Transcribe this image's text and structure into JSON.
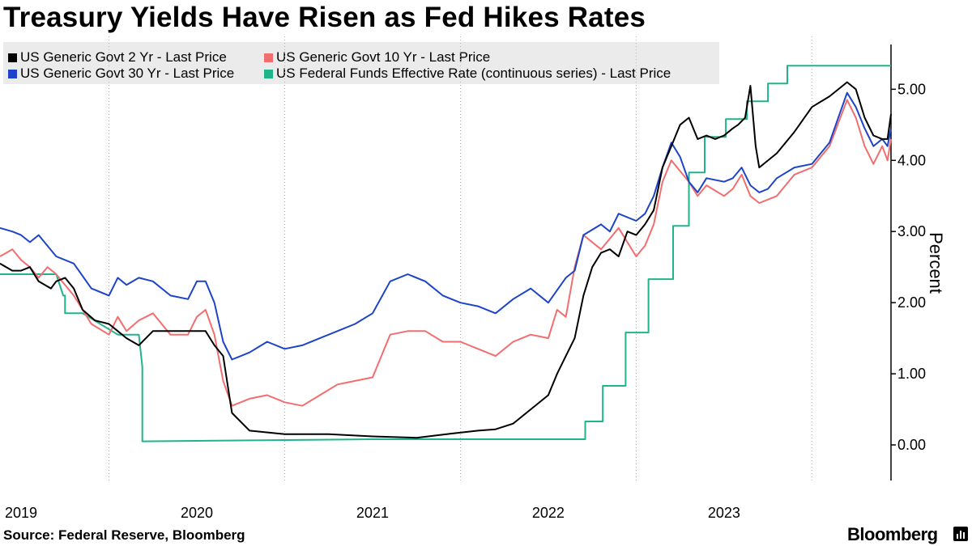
{
  "title": "Treasury Yields Have Risen as Fed Hikes Rates",
  "source": "Source: Federal Reserve, Bloomberg",
  "brand": "Bloomberg",
  "chart_data": {
    "type": "line",
    "ylabel": "Percent",
    "ylim": [
      -0.5,
      5.8
    ],
    "yticks": [
      0,
      1,
      2,
      3,
      4,
      5
    ],
    "ytick_labels": [
      "0.00",
      "1.00",
      "2.00",
      "3.00",
      "4.00",
      "5.00"
    ],
    "xlim": [
      2018.88,
      2023.95
    ],
    "xticks": [
      2019,
      2020,
      2021,
      2022,
      2023
    ],
    "xtick_labels": [
      "2019",
      "2020",
      "2021",
      "2022",
      "2023"
    ],
    "grid": "vertical dotted",
    "legend_position": "top-left",
    "series": [
      {
        "name": "US Generic Govt 2 Yr - Last Price",
        "color": "#000000",
        "x": [
          2018.88,
          2018.95,
          2019.0,
          2019.05,
          2019.1,
          2019.17,
          2019.2,
          2019.25,
          2019.3,
          2019.35,
          2019.42,
          2019.5,
          2019.55,
          2019.6,
          2019.67,
          2019.75,
          2019.85,
          2019.95,
          2020.05,
          2020.1,
          2020.15,
          2020.2,
          2020.3,
          2020.5,
          2020.75,
          2021.0,
          2021.25,
          2021.45,
          2021.6,
          2021.7,
          2021.8,
          2021.9,
          2022.0,
          2022.05,
          2022.1,
          2022.15,
          2022.2,
          2022.25,
          2022.3,
          2022.35,
          2022.4,
          2022.45,
          2022.5,
          2022.55,
          2022.6,
          2022.65,
          2022.7,
          2022.75,
          2022.8,
          2022.85,
          2022.9,
          2022.95,
          2023.0,
          2023.05,
          2023.08,
          2023.12,
          2023.15,
          2023.18,
          2023.2,
          2023.3,
          2023.4,
          2023.5,
          2023.6,
          2023.7,
          2023.75,
          2023.8,
          2023.85,
          2023.9,
          2023.93,
          2023.95
        ],
        "values": [
          2.55,
          2.45,
          2.45,
          2.5,
          2.3,
          2.2,
          2.3,
          2.35,
          2.2,
          1.9,
          1.75,
          1.7,
          1.6,
          1.5,
          1.4,
          1.6,
          1.6,
          1.6,
          1.6,
          1.4,
          1.25,
          0.45,
          0.2,
          0.15,
          0.15,
          0.12,
          0.1,
          0.16,
          0.2,
          0.22,
          0.3,
          0.5,
          0.7,
          1.0,
          1.25,
          1.5,
          2.1,
          2.5,
          2.7,
          2.75,
          2.65,
          3.0,
          2.95,
          3.1,
          3.3,
          3.9,
          4.2,
          4.5,
          4.6,
          4.3,
          4.35,
          4.3,
          4.35,
          4.45,
          4.5,
          4.6,
          5.05,
          4.2,
          3.9,
          4.1,
          4.4,
          4.75,
          4.9,
          5.1,
          5.0,
          4.6,
          4.35,
          4.3,
          4.3,
          4.65
        ]
      },
      {
        "name": "US Generic Govt 10 Yr - Last Price",
        "color": "#f26e6e",
        "x": [
          2018.88,
          2018.95,
          2019.0,
          2019.05,
          2019.1,
          2019.15,
          2019.2,
          2019.3,
          2019.4,
          2019.5,
          2019.55,
          2019.6,
          2019.67,
          2019.75,
          2019.85,
          2019.95,
          2020.0,
          2020.05,
          2020.1,
          2020.15,
          2020.2,
          2020.3,
          2020.4,
          2020.5,
          2020.6,
          2020.7,
          2020.8,
          2020.9,
          2021.0,
          2021.1,
          2021.2,
          2021.3,
          2021.4,
          2021.5,
          2021.6,
          2021.7,
          2021.8,
          2021.9,
          2022.0,
          2022.05,
          2022.1,
          2022.15,
          2022.2,
          2022.3,
          2022.35,
          2022.4,
          2022.5,
          2022.55,
          2022.6,
          2022.65,
          2022.7,
          2022.75,
          2022.8,
          2022.85,
          2022.9,
          2023.0,
          2023.05,
          2023.1,
          2023.15,
          2023.2,
          2023.25,
          2023.3,
          2023.4,
          2023.5,
          2023.6,
          2023.7,
          2023.75,
          2023.8,
          2023.85,
          2023.9,
          2023.93,
          2023.95
        ],
        "values": [
          2.65,
          2.75,
          2.6,
          2.5,
          2.35,
          2.5,
          2.4,
          2.1,
          1.7,
          1.55,
          1.8,
          1.6,
          1.75,
          1.85,
          1.55,
          1.55,
          1.8,
          1.9,
          1.55,
          0.9,
          0.55,
          0.65,
          0.7,
          0.6,
          0.55,
          0.7,
          0.85,
          0.9,
          0.95,
          1.55,
          1.6,
          1.6,
          1.45,
          1.45,
          1.35,
          1.25,
          1.45,
          1.55,
          1.5,
          1.9,
          1.8,
          2.5,
          2.95,
          2.75,
          2.9,
          3.05,
          2.65,
          2.8,
          3.1,
          3.7,
          4.0,
          3.85,
          3.7,
          3.5,
          3.65,
          3.5,
          3.6,
          3.8,
          3.5,
          3.4,
          3.45,
          3.5,
          3.8,
          3.9,
          4.2,
          4.85,
          4.6,
          4.2,
          3.95,
          4.2,
          4.0,
          4.3
        ]
      },
      {
        "name": "US Generic Govt 30 Yr - Last Price",
        "color": "#1d44c8",
        "x": [
          2018.88,
          2018.95,
          2019.0,
          2019.05,
          2019.1,
          2019.2,
          2019.3,
          2019.4,
          2019.5,
          2019.55,
          2019.6,
          2019.67,
          2019.75,
          2019.85,
          2019.95,
          2020.0,
          2020.05,
          2020.1,
          2020.15,
          2020.2,
          2020.3,
          2020.4,
          2020.5,
          2020.6,
          2020.7,
          2020.8,
          2020.9,
          2021.0,
          2021.1,
          2021.2,
          2021.3,
          2021.4,
          2021.5,
          2021.6,
          2021.7,
          2021.8,
          2021.9,
          2022.0,
          2022.1,
          2022.15,
          2022.2,
          2022.3,
          2022.35,
          2022.4,
          2022.5,
          2022.55,
          2022.6,
          2022.65,
          2022.7,
          2022.75,
          2022.8,
          2022.85,
          2022.9,
          2023.0,
          2023.05,
          2023.1,
          2023.15,
          2023.2,
          2023.25,
          2023.3,
          2023.4,
          2023.5,
          2023.6,
          2023.7,
          2023.75,
          2023.8,
          2023.85,
          2023.9,
          2023.93,
          2023.95
        ],
        "values": [
          3.05,
          3.0,
          2.95,
          2.85,
          2.95,
          2.65,
          2.55,
          2.2,
          2.1,
          2.35,
          2.25,
          2.35,
          2.3,
          2.1,
          2.05,
          2.3,
          2.3,
          2.0,
          1.45,
          1.2,
          1.3,
          1.45,
          1.35,
          1.4,
          1.5,
          1.6,
          1.7,
          1.85,
          2.3,
          2.4,
          2.3,
          2.1,
          2.0,
          1.95,
          1.85,
          2.05,
          2.2,
          2.0,
          2.35,
          2.45,
          2.95,
          3.1,
          3.0,
          3.25,
          3.15,
          3.25,
          3.5,
          3.9,
          4.25,
          4.05,
          3.7,
          3.55,
          3.75,
          3.7,
          3.75,
          3.9,
          3.65,
          3.55,
          3.6,
          3.75,
          3.9,
          3.95,
          4.25,
          4.95,
          4.75,
          4.45,
          4.2,
          4.3,
          4.2,
          4.45
        ]
      },
      {
        "name": "US Federal Funds Effective Rate (continuous series) - Last Price",
        "color": "#20b48a",
        "x": [
          2018.88,
          2019.02,
          2019.18,
          2019.2,
          2019.2,
          2019.24,
          2019.24,
          2019.25,
          2019.25,
          2019.35,
          2019.55,
          2019.6,
          2019.6,
          2019.62,
          2019.67,
          2019.69,
          2019.69,
          2021.0,
          2021.5,
          2022.0,
          2022.2,
          2022.21,
          2022.21,
          2022.3,
          2022.31,
          2022.31,
          2022.43,
          2022.44,
          2022.44,
          2022.56,
          2022.57,
          2022.57,
          2022.7,
          2022.71,
          2022.71,
          2022.79,
          2022.8,
          2022.8,
          2022.88,
          2022.89,
          2022.89,
          2023.0,
          2023.01,
          2023.01,
          2023.12,
          2023.13,
          2023.13,
          2023.24,
          2023.25,
          2023.25,
          2023.35,
          2023.36,
          2023.36,
          2023.55,
          2023.56,
          2023.56,
          2023.95
        ],
        "values": [
          2.4,
          2.4,
          2.4,
          2.4,
          2.4,
          2.1,
          2.1,
          2.1,
          1.85,
          1.85,
          1.55,
          1.55,
          1.55,
          1.55,
          1.55,
          1.1,
          0.05,
          0.08,
          0.08,
          0.08,
          0.08,
          0.08,
          0.33,
          0.33,
          0.33,
          0.83,
          0.83,
          0.83,
          1.58,
          1.58,
          1.58,
          2.33,
          2.33,
          2.33,
          3.08,
          3.08,
          3.08,
          3.83,
          3.83,
          3.83,
          4.33,
          4.33,
          4.33,
          4.58,
          4.58,
          4.58,
          4.83,
          4.83,
          4.83,
          5.08,
          5.08,
          5.08,
          5.33,
          5.33,
          5.33,
          5.33,
          5.33
        ]
      }
    ]
  }
}
